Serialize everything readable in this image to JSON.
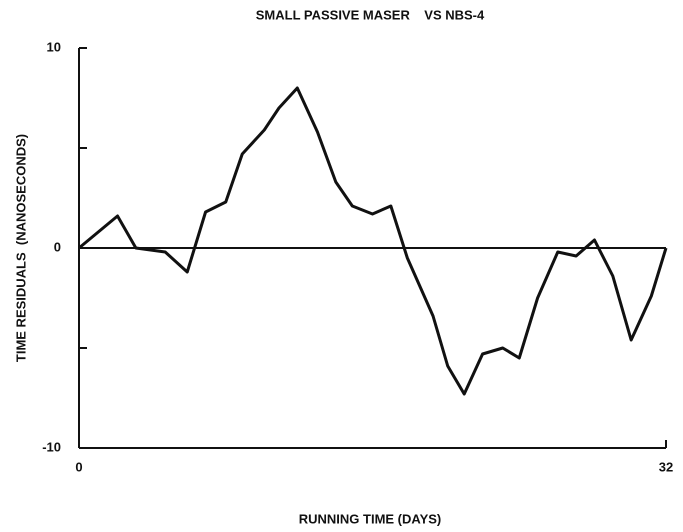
{
  "chart_data": {
    "type": "line",
    "title": "SMALL PASSIVE MASER    VS NBS-4",
    "x_label": "RUNNING TIME (DAYS)",
    "y_label": "TIME RESIDUALS  (NANOSECONDS)",
    "x": [
      0,
      2.1,
      3.1,
      4.7,
      5.9,
      6.9,
      8.0,
      8.9,
      10.1,
      10.9,
      11.9,
      13.0,
      14.0,
      14.9,
      16.0,
      17.0,
      17.9,
      19.3,
      20.1,
      21.0,
      22.0,
      23.1,
      24.0,
      25.0,
      26.1,
      27.1,
      28.1,
      29.1,
      30.1,
      31.2,
      32
    ],
    "series": [
      {
        "name": "residuals",
        "color": "#111111",
        "values": [
          0,
          1.6,
          0,
          -0.2,
          -1.2,
          1.8,
          2.3,
          4.7,
          5.9,
          7.0,
          8.0,
          5.8,
          3.3,
          2.1,
          1.7,
          2.1,
          -0.5,
          -3.4,
          -5.9,
          -7.3,
          -5.3,
          -5.0,
          -5.5,
          -2.5,
          -0.2,
          -0.4,
          0.4,
          -1.4,
          -4.6,
          -2.4,
          0
        ]
      }
    ],
    "xlim": [
      0,
      32
    ],
    "xticks": [
      0,
      32
    ],
    "ylim": [
      -10,
      10
    ],
    "yticks": [
      -10,
      0,
      10
    ],
    "yminorticks": [
      -5,
      5
    ],
    "zero_line": true
  }
}
